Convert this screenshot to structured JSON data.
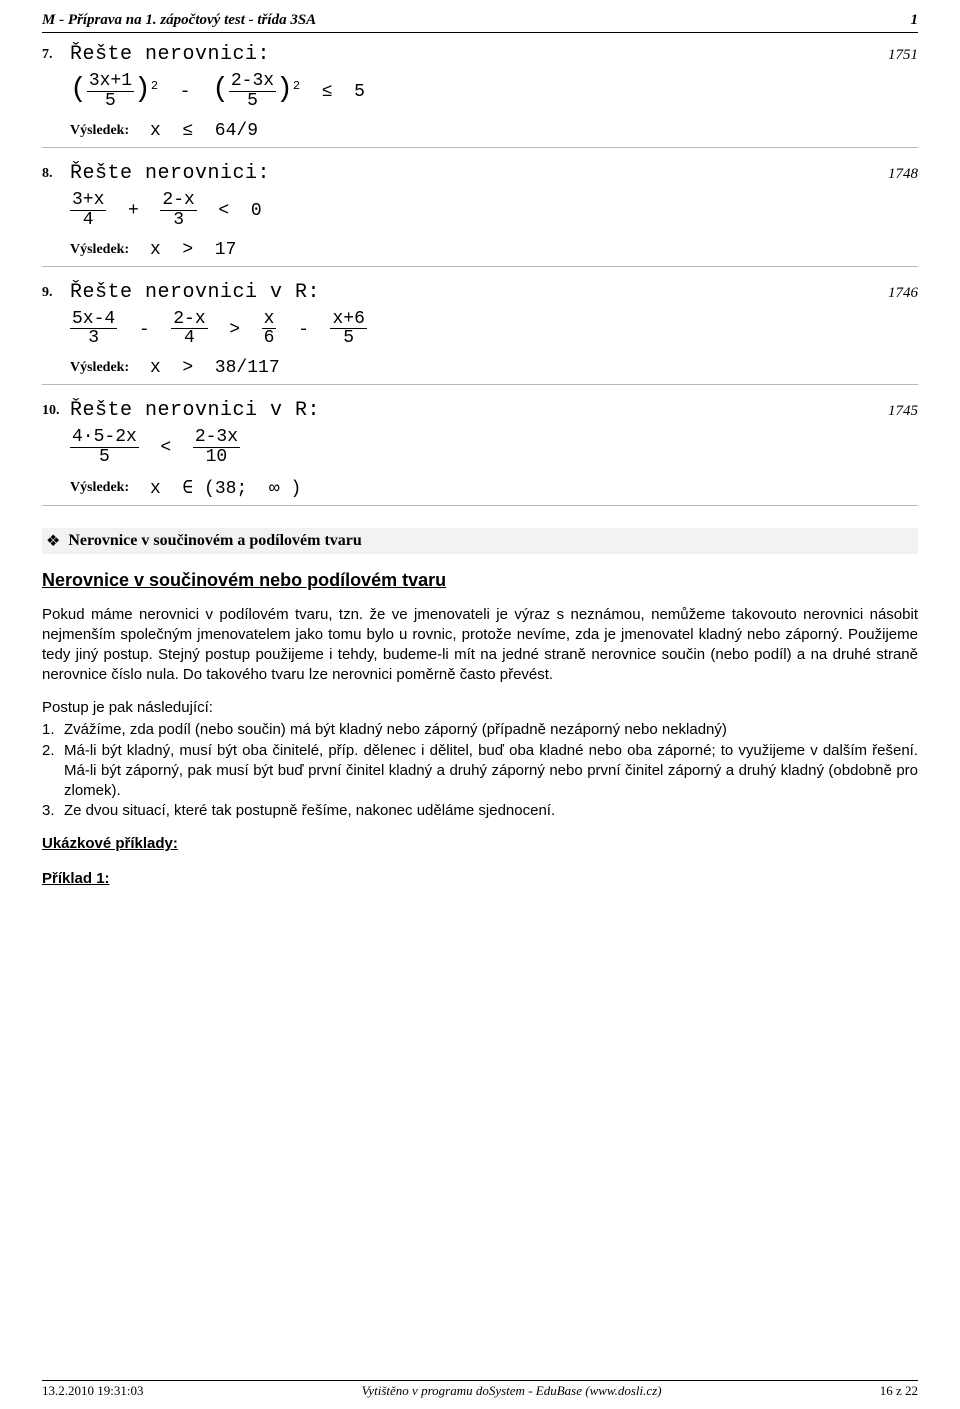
{
  "header": {
    "title": "M - Příprava na 1. zápočtový test - třída 3SA",
    "page": "1"
  },
  "problems": [
    {
      "num": "7.",
      "id": "1751",
      "title": "Řešte nerovnici:",
      "expr_html": "<span style='font-size:28px'>(</span><span class='frac'><span class='top'>3x+1</span><span class='bot'>5</span></span><span style='font-size:28px'>)</span><span class='sup'>2</span> &nbsp;-&nbsp; <span style='font-size:28px'>(</span><span class='frac'><span class='top'>2-3x</span><span class='bot'>5</span></span><span style='font-size:28px'>)</span><span class='sup'>2</span> &nbsp;≤&nbsp; 5",
      "result": "x  ≤  64/9"
    },
    {
      "num": "8.",
      "id": "1748",
      "title": "Řešte nerovnici:",
      "expr_html": "<span class='frac'><span class='top'>3+x</span><span class='bot'>4</span></span> &nbsp;+&nbsp; <span class='frac'><span class='top'>2-x</span><span class='bot'>3</span></span> &nbsp;&lt;&nbsp; 0",
      "result": "x  >  17"
    },
    {
      "num": "9.",
      "id": "1746",
      "title": "Řešte nerovnici v R:",
      "expr_html": "<span class='frac'><span class='top'>5x-4</span><span class='bot'>3</span></span> &nbsp;-&nbsp; <span class='frac'><span class='top'>2-x</span><span class='bot'>4</span></span> &nbsp;&gt;&nbsp; <span class='frac'><span class='top'>x</span><span class='bot'>6</span></span> &nbsp;-&nbsp; <span class='frac'><span class='top'>x+6</span><span class='bot'>5</span></span>",
      "result": "x  >  38/117"
    },
    {
      "num": "10.",
      "id": "1745",
      "title": "Řešte nerovnici v R:",
      "expr_html": "<span class='frac'><span class='top'>4·5-2x</span><span class='bot'>5</span></span> &nbsp;&lt;&nbsp; <span class='frac'><span class='top'>2-3x</span><span class='bot'>10</span></span>",
      "result": "x  ∈ (38;  ∞ )"
    }
  ],
  "result_label": "Výsledek:",
  "section": {
    "title": "Nerovnice v součinovém a podílovém tvaru",
    "subtitle": "Nerovnice v součinovém nebo podílovém tvaru",
    "para1": "Pokud máme nerovnici v podílovém tvaru, tzn. že ve jmenovateli je výraz s neznámou, nemůžeme takovouto nerovnici násobit nejmenším společným jmenovatelem jako tomu bylo u rovnic, protože nevíme, zda je jmenovatel kladný nebo záporný. Použijeme tedy jiný postup. Stejný postup použijeme i tehdy, budeme-li mít na jedné straně nerovnice součin (nebo podíl) a na druhé straně nerovnice číslo nula. Do takového tvaru lze nerovnici poměrně často převést.",
    "steps_title": "Postup je pak následující:",
    "steps": [
      {
        "n": "1.",
        "t": "Zvážíme, zda podíl (nebo součin) má být kladný nebo záporný (případně nezáporný nebo nekladný)"
      },
      {
        "n": "2.",
        "t": "Má-li být kladný, musí být oba činitelé, příp. dělenec i dělitel, buď oba kladné nebo oba záporné; to využijeme v dalším řešení. Má-li být záporný, pak musí být buď první činitel kladný a druhý záporný nebo první činitel záporný a druhý kladný (obdobně pro zlomek)."
      },
      {
        "n": "3.",
        "t": "Ze dvou situací, které tak postupně řešíme, nakonec uděláme sjednocení."
      }
    ],
    "examples_title": "Ukázkové příklady:",
    "example1": "Příklad 1:"
  },
  "footer": {
    "left": "13.2.2010 19:31:03",
    "mid": "Vytištěno v programu doSystem - EduBase (www.dosli.cz)",
    "right": "16 z 22"
  }
}
